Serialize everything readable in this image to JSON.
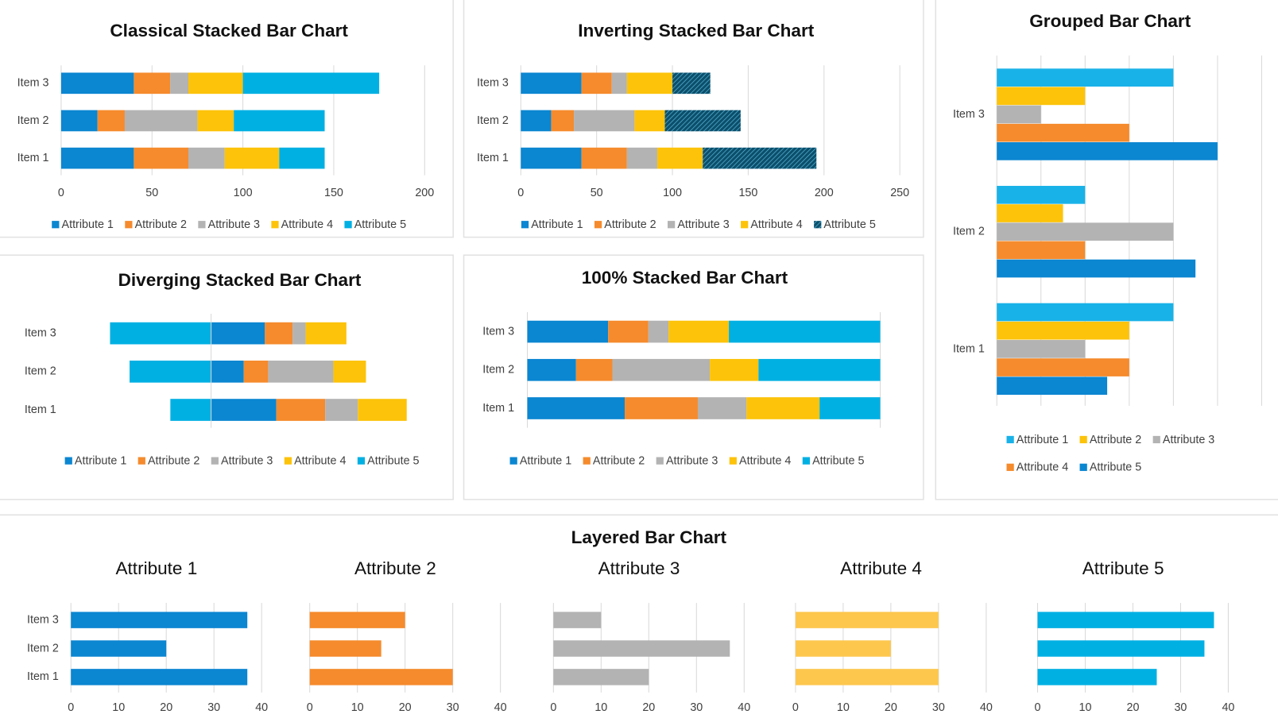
{
  "chart_data": [
    {
      "type": "stacked_bar",
      "title": "Classical Stacked Bar Chart",
      "categories": [
        "Item 1",
        "Item 2",
        "Item 3"
      ],
      "series": [
        {
          "name": "Attribute 1",
          "color": "#0b86d1",
          "values": [
            40,
            20,
            40
          ]
        },
        {
          "name": "Attribute 2",
          "color": "#f58b2d",
          "values": [
            30,
            15,
            20
          ]
        },
        {
          "name": "Attribute 3",
          "color": "#b3b3b3",
          "values": [
            20,
            40,
            10
          ]
        },
        {
          "name": "Attribute 4",
          "color": "#fcc30a",
          "values": [
            30,
            20,
            30
          ]
        },
        {
          "name": "Attribute 5",
          "color": "#00b0e3",
          "values": [
            25,
            50,
            75
          ]
        }
      ],
      "xlim": [
        0,
        200
      ],
      "xticks": [
        0,
        50,
        100,
        150,
        200
      ],
      "grid": true
    },
    {
      "type": "stacked_bar",
      "title": "Inverting Stacked Bar Chart",
      "categories": [
        "Item 1",
        "Item 2",
        "Item 3"
      ],
      "series": [
        {
          "name": "Attribute 1",
          "color": "#0b86d1",
          "values": [
            40,
            20,
            40
          ]
        },
        {
          "name": "Attribute 2",
          "color": "#f58b2d",
          "values": [
            30,
            15,
            20
          ]
        },
        {
          "name": "Attribute 3",
          "color": "#b3b3b3",
          "values": [
            20,
            40,
            10
          ]
        },
        {
          "name": "Attribute 4",
          "color": "#fcc30a",
          "values": [
            30,
            20,
            30
          ]
        },
        {
          "name": "Attribute 5",
          "color": "#0d4f6b",
          "pattern": "hatch",
          "values": [
            75,
            50,
            25
          ]
        }
      ],
      "xlim": [
        0,
        250
      ],
      "xticks": [
        0,
        50,
        100,
        150,
        200,
        250
      ],
      "grid": true
    },
    {
      "type": "diverging_stacked_bar",
      "title": "Diverging Stacked Bar Chart",
      "categories": [
        "Item 1",
        "Item 2",
        "Item 3"
      ],
      "series": [
        {
          "name": "Attribute 1",
          "color": "#0b86d1",
          "values": [
            40,
            20,
            33
          ]
        },
        {
          "name": "Attribute 2",
          "color": "#f58b2d",
          "values": [
            30,
            15,
            17
          ]
        },
        {
          "name": "Attribute 3",
          "color": "#b3b3b3",
          "values": [
            20,
            40,
            8
          ]
        },
        {
          "name": "Attribute 4",
          "color": "#fcc30a",
          "values": [
            30,
            20,
            25
          ]
        },
        {
          "name": "Attribute 5",
          "color": "#00b0e3",
          "side": "left",
          "values": [
            25,
            50,
            62
          ]
        }
      ]
    },
    {
      "type": "stacked_bar",
      "title": "100% Stacked Bar Chart",
      "categories": [
        "Item 1",
        "Item 2",
        "Item 3"
      ],
      "series": [
        {
          "name": "Attribute 1",
          "color": "#0b86d1",
          "values": [
            27.6,
            13.8,
            22.9
          ]
        },
        {
          "name": "Attribute 2",
          "color": "#f58b2d",
          "values": [
            20.7,
            10.3,
            11.4
          ]
        },
        {
          "name": "Attribute 3",
          "color": "#b3b3b3",
          "values": [
            13.8,
            27.6,
            5.7
          ]
        },
        {
          "name": "Attribute 4",
          "color": "#fcc30a",
          "values": [
            20.7,
            13.8,
            17.1
          ]
        },
        {
          "name": "Attribute 5",
          "color": "#00b0e3",
          "values": [
            17.2,
            34.5,
            42.9
          ]
        }
      ],
      "xlim": [
        0,
        100
      ],
      "xticks": [
        0,
        100
      ],
      "grid": true
    },
    {
      "type": "grouped_bar",
      "title": "Grouped Bar Chart",
      "categories": [
        "Item 1",
        "Item 2",
        "Item 3"
      ],
      "series": [
        {
          "name": "Attribute 1",
          "color": "#19b2e8",
          "values": [
            40,
            20,
            40
          ]
        },
        {
          "name": "Attribute 2",
          "color": "#fcc30a",
          "values": [
            30,
            15,
            20
          ]
        },
        {
          "name": "Attribute 3",
          "color": "#b3b3b3",
          "values": [
            20,
            40,
            10
          ]
        },
        {
          "name": "Attribute 4",
          "color": "#f58b2d",
          "values": [
            30,
            20,
            30
          ]
        },
        {
          "name": "Attribute 5",
          "color": "#0b86d1",
          "values": [
            25,
            45,
            50
          ]
        }
      ],
      "xlim": [
        0,
        60
      ],
      "xticks": [
        0,
        10,
        20,
        30,
        40,
        50,
        60
      ],
      "grid": true
    },
    {
      "type": "layered_bar",
      "title": "Layered Bar Chart",
      "categories": [
        "Item 1",
        "Item 2",
        "Item 3"
      ],
      "xlim": [
        0,
        40
      ],
      "xticks": [
        0,
        10,
        20,
        30,
        40
      ],
      "grid": true,
      "panels": [
        {
          "title": "Attribute 1",
          "color": "#0b86d1",
          "values": [
            37,
            20,
            37
          ]
        },
        {
          "title": "Attribute 2",
          "color": "#f58b2d",
          "values": [
            30,
            15,
            20
          ]
        },
        {
          "title": "Attribute 3",
          "color": "#b3b3b3",
          "values": [
            20,
            37,
            10
          ]
        },
        {
          "title": "Attribute 4",
          "color": "#fdc74e",
          "values": [
            30,
            20,
            30
          ]
        },
        {
          "title": "Attribute 5",
          "color": "#00b0e3",
          "values": [
            25,
            35,
            37
          ]
        }
      ]
    }
  ]
}
